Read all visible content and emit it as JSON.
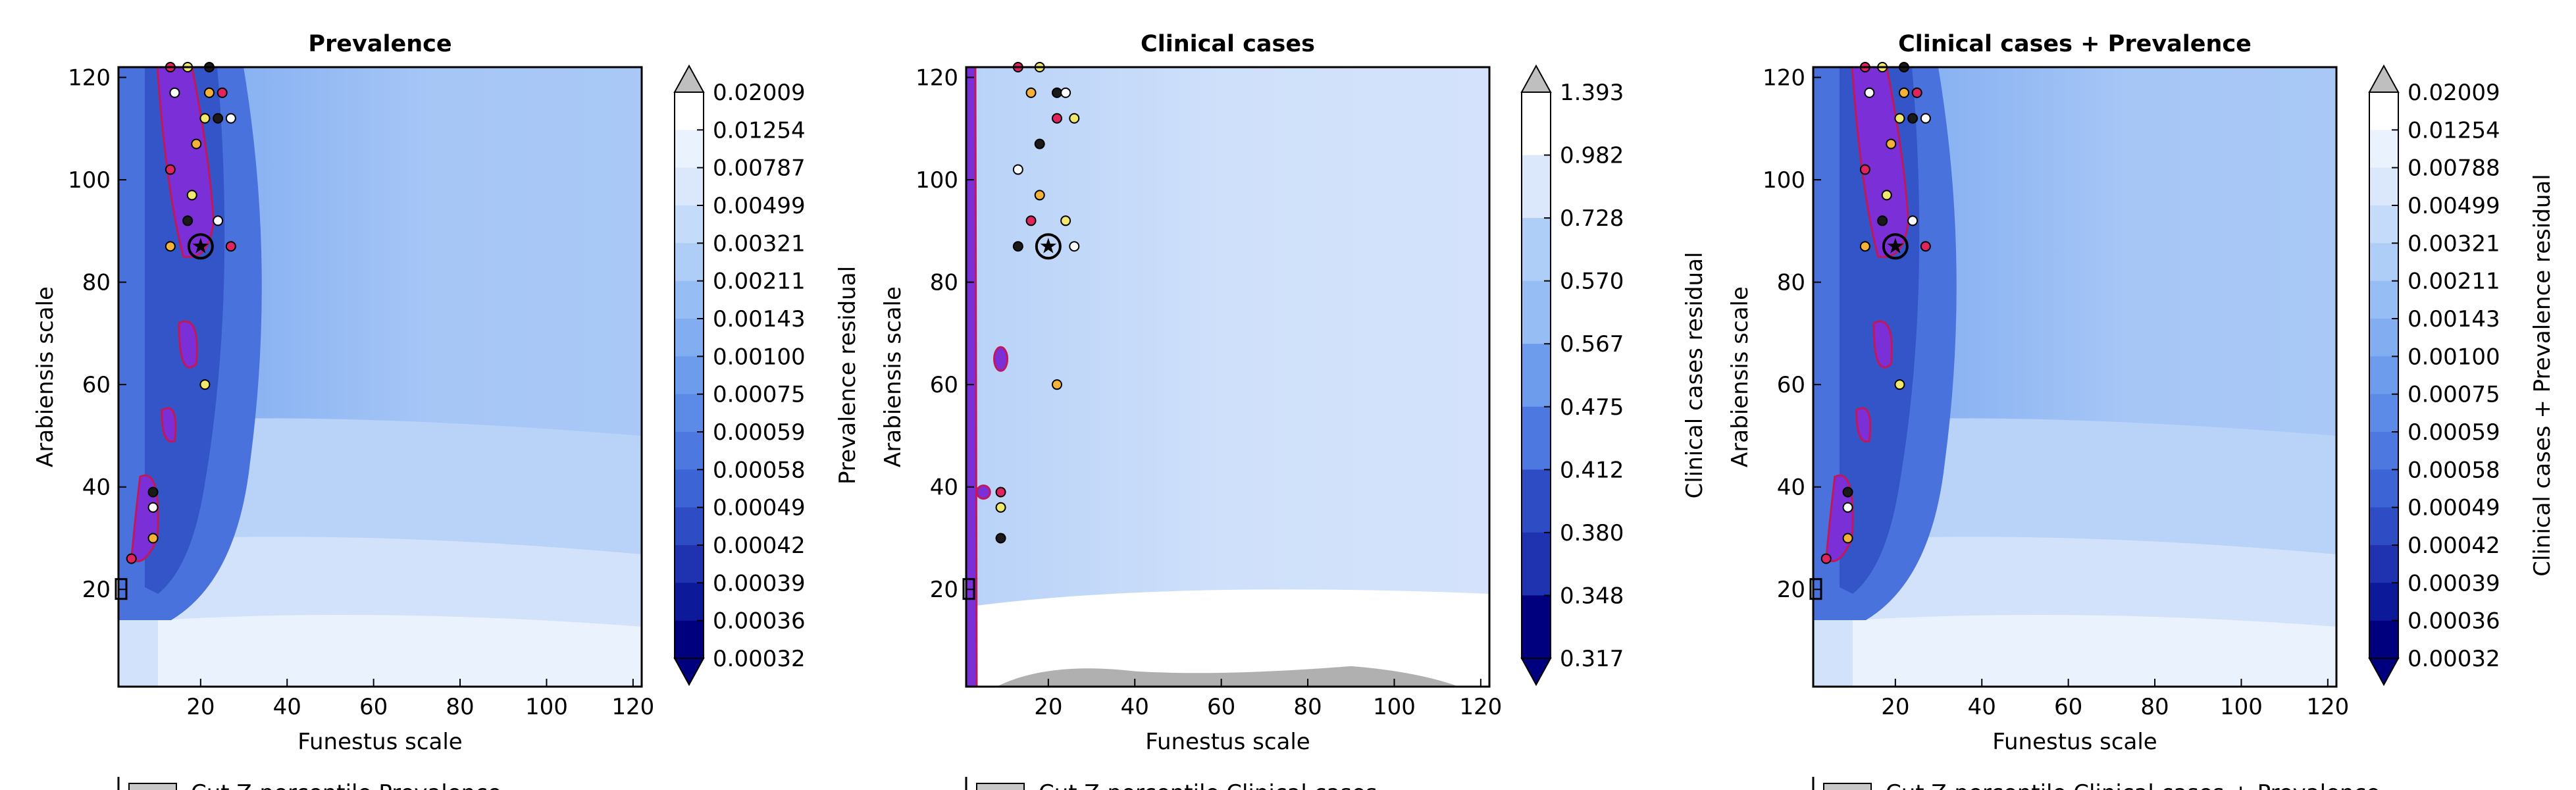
{
  "figure": {
    "panels": [
      {
        "title": "Prevalence",
        "xlabel": "Funestus scale",
        "ylabel": "Arabiensis scale",
        "colorbar_label": "Prevalence residual",
        "legend_text": "Cut Z-percentile Prevalence"
      },
      {
        "title": "Clinical cases",
        "xlabel": "Funestus scale",
        "ylabel": "Arabiensis scale",
        "colorbar_label": "Clinical cases residual",
        "legend_text": "Cut Z-percentile Clinical cases"
      },
      {
        "title": "Clinical cases + Prevalence",
        "xlabel": "Funestus scale",
        "ylabel": "Arabiensis scale",
        "colorbar_label": "Clinical cases + Prevalence residual",
        "legend_text": "Cut Z-percentile Clinical cases + Prevalence"
      }
    ]
  },
  "chart_data": [
    {
      "type": "heatmap",
      "title": "Prevalence",
      "xlabel": "Funestus scale",
      "ylabel": "Arabiensis scale",
      "xlim": [
        1,
        122
      ],
      "ylim": [
        1,
        122
      ],
      "xticks": [
        20,
        40,
        60,
        80,
        100,
        120
      ],
      "yticks": [
        20,
        40,
        60,
        80,
        100,
        120
      ],
      "colorbar_label": "Prevalence residual",
      "colorbar_levels": [
        "0.02009",
        "0.01254",
        "0.00787",
        "0.00499",
        "0.00321",
        "0.00211",
        "0.00143",
        "0.00100",
        "0.00075",
        "0.00059",
        "0.00058",
        "0.00049",
        "0.00042",
        "0.00039",
        "0.00036",
        "0.00032"
      ],
      "best_point": [
        20,
        87
      ],
      "points": [
        [
          13,
          122
        ],
        [
          17,
          122
        ],
        [
          22,
          122
        ],
        [
          14,
          117
        ],
        [
          22,
          117
        ],
        [
          25,
          117
        ],
        [
          21,
          112
        ],
        [
          24,
          112
        ],
        [
          27,
          112
        ],
        [
          19,
          107
        ],
        [
          13,
          102
        ],
        [
          18,
          97
        ],
        [
          17,
          92
        ],
        [
          24,
          92
        ],
        [
          13,
          87
        ],
        [
          27,
          87
        ],
        [
          21,
          60
        ],
        [
          9,
          39
        ],
        [
          9,
          36
        ],
        [
          9,
          30
        ],
        [
          4,
          26
        ]
      ]
    },
    {
      "type": "heatmap",
      "title": "Clinical cases",
      "xlabel": "Funestus scale",
      "ylabel": "Arabiensis scale",
      "xlim": [
        1,
        122
      ],
      "ylim": [
        1,
        122
      ],
      "xticks": [
        20,
        40,
        60,
        80,
        100,
        120
      ],
      "yticks": [
        20,
        40,
        60,
        80,
        100,
        120
      ],
      "colorbar_label": "Clinical cases residual",
      "colorbar_levels": [
        "1.393",
        "0.982",
        "0.728",
        "0.570",
        "0.567",
        "0.475",
        "0.412",
        "0.380",
        "0.348",
        "0.317"
      ],
      "best_point": [
        20,
        87
      ],
      "points": [
        [
          13,
          122
        ],
        [
          18,
          122
        ],
        [
          22,
          117
        ],
        [
          24,
          117
        ],
        [
          16,
          117
        ],
        [
          22,
          112
        ],
        [
          26,
          112
        ],
        [
          18,
          107
        ],
        [
          13,
          102
        ],
        [
          18,
          97
        ],
        [
          16,
          92
        ],
        [
          24,
          92
        ],
        [
          13,
          87
        ],
        [
          26,
          87
        ],
        [
          22,
          60
        ],
        [
          9,
          39
        ],
        [
          9,
          36
        ],
        [
          9,
          30
        ]
      ]
    },
    {
      "type": "heatmap",
      "title": "Clinical cases + Prevalence",
      "xlabel": "Funestus scale",
      "ylabel": "Arabiensis scale",
      "xlim": [
        1,
        122
      ],
      "ylim": [
        1,
        122
      ],
      "xticks": [
        20,
        40,
        60,
        80,
        100,
        120
      ],
      "yticks": [
        20,
        40,
        60,
        80,
        100,
        120
      ],
      "colorbar_label": "Clinical cases + Prevalence residual",
      "colorbar_levels": [
        "0.02009",
        "0.01254",
        "0.00788",
        "0.00499",
        "0.00321",
        "0.00211",
        "0.00143",
        "0.00100",
        "0.00075",
        "0.00059",
        "0.00058",
        "0.00049",
        "0.00042",
        "0.00039",
        "0.00036",
        "0.00032"
      ],
      "best_point": [
        20,
        87
      ],
      "points": [
        [
          13,
          122
        ],
        [
          17,
          122
        ],
        [
          22,
          122
        ],
        [
          14,
          117
        ],
        [
          22,
          117
        ],
        [
          25,
          117
        ],
        [
          21,
          112
        ],
        [
          24,
          112
        ],
        [
          27,
          112
        ],
        [
          19,
          107
        ],
        [
          13,
          102
        ],
        [
          18,
          97
        ],
        [
          17,
          92
        ],
        [
          24,
          92
        ],
        [
          13,
          87
        ],
        [
          27,
          87
        ],
        [
          21,
          60
        ],
        [
          9,
          39
        ],
        [
          9,
          36
        ],
        [
          9,
          30
        ],
        [
          4,
          26
        ]
      ]
    }
  ],
  "colors": {
    "ramp": [
      "#00007f",
      "#0c1a9a",
      "#1f33b0",
      "#2e4cc4",
      "#3d64d4",
      "#4c78df",
      "#5b8be6",
      "#6e9ced",
      "#82aef1",
      "#97bef4",
      "#aecdf7",
      "#c4dcf9",
      "#dbe8fb",
      "#eaf2fd",
      "#ffffff"
    ],
    "cut_region": "#7b2fd6",
    "cut_edge": "#c0185a",
    "over": "#bfbfbf",
    "grey_patch": "#b0b0b0"
  }
}
